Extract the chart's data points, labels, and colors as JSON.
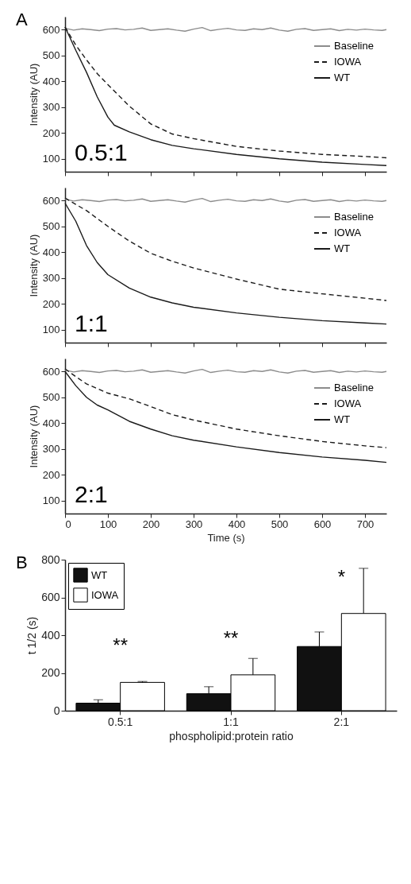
{
  "chart_data": [
    {
      "type": "line",
      "title": "A",
      "ylabel": "Intensity (AU)",
      "annotations": [
        "0.5:1"
      ],
      "xlim": [
        0,
        750
      ],
      "xticks": [
        0,
        100,
        200,
        300,
        400,
        500,
        600,
        700
      ],
      "ylim": [
        50,
        650
      ],
      "yticks": [
        100,
        200,
        300,
        400,
        500,
        600
      ],
      "tick_labels": "y",
      "legend": "top right",
      "series": [
        {
          "name": "Baseline",
          "color": "#8c8c8c",
          "line_style": "solid",
          "x": [
            0,
            20,
            40,
            60,
            80,
            100,
            120,
            140,
            160,
            180,
            200,
            220,
            240,
            260,
            280,
            300,
            320,
            340,
            360,
            380,
            400,
            420,
            440,
            460,
            480,
            500,
            520,
            540,
            560,
            580,
            600,
            620,
            640,
            660,
            680,
            700,
            720,
            740,
            750
          ],
          "values": [
            605,
            598,
            603,
            600,
            596,
            602,
            604,
            599,
            601,
            606,
            597,
            600,
            603,
            598,
            594,
            602,
            608,
            596,
            601,
            605,
            599,
            597,
            603,
            600,
            606,
            598,
            594,
            601,
            604,
            597,
            600,
            603,
            596,
            601,
            598,
            602,
            599,
            597,
            600
          ]
        },
        {
          "name": "IOWA",
          "color": "#1a1a1a",
          "line_style": "dashed",
          "x": [
            0,
            25,
            50,
            75,
            100,
            150,
            200,
            250,
            300,
            400,
            500,
            600,
            700,
            750
          ],
          "values": [
            610,
            540,
            483,
            430,
            387,
            304,
            235,
            196,
            178,
            148,
            130,
            117,
            109,
            104
          ]
        },
        {
          "name": "WT",
          "color": "#1a1a1a",
          "line_style": "solid",
          "x": [
            0,
            25,
            50,
            75,
            100,
            115,
            150,
            200,
            250,
            300,
            400,
            500,
            600,
            700,
            750
          ],
          "values": [
            610,
            520,
            435,
            340,
            261,
            230,
            204,
            174,
            152,
            139,
            117,
            100,
            87,
            78,
            74
          ]
        }
      ]
    },
    {
      "type": "line",
      "ylabel": "Intensity (AU)",
      "annotations": [
        "1:1"
      ],
      "xlim": [
        0,
        750
      ],
      "xticks": [
        0,
        100,
        200,
        300,
        400,
        500,
        600,
        700
      ],
      "ylim": [
        50,
        650
      ],
      "yticks": [
        100,
        200,
        300,
        400,
        500,
        600
      ],
      "tick_labels": "y",
      "legend": "top right",
      "series": [
        {
          "name": "Baseline",
          "color": "#8c8c8c",
          "line_style": "solid",
          "x": [
            0,
            20,
            40,
            60,
            80,
            100,
            120,
            140,
            160,
            180,
            200,
            220,
            240,
            260,
            280,
            300,
            320,
            340,
            360,
            380,
            400,
            420,
            440,
            460,
            480,
            500,
            520,
            540,
            560,
            580,
            600,
            620,
            640,
            660,
            680,
            700,
            720,
            740,
            750
          ],
          "values": [
            605,
            598,
            603,
            600,
            596,
            602,
            604,
            599,
            601,
            606,
            597,
            600,
            603,
            598,
            594,
            602,
            608,
            596,
            601,
            605,
            599,
            597,
            603,
            600,
            606,
            598,
            594,
            601,
            604,
            597,
            600,
            603,
            596,
            601,
            598,
            602,
            599,
            597,
            600
          ]
        },
        {
          "name": "IOWA",
          "color": "#1a1a1a",
          "line_style": "dashed",
          "x": [
            0,
            25,
            50,
            100,
            150,
            200,
            250,
            300,
            400,
            500,
            600,
            700,
            750
          ],
          "values": [
            610,
            585,
            561,
            500,
            443,
            396,
            365,
            339,
            296,
            257,
            239,
            222,
            213
          ]
        },
        {
          "name": "WT",
          "color": "#1a1a1a",
          "line_style": "solid",
          "x": [
            0,
            25,
            50,
            75,
            100,
            150,
            200,
            250,
            300,
            400,
            500,
            600,
            700,
            750
          ],
          "values": [
            590,
            520,
            426,
            360,
            313,
            261,
            226,
            204,
            187,
            165,
            148,
            135,
            126,
            122
          ]
        }
      ]
    },
    {
      "type": "line",
      "ylabel": "Intensity (AU)",
      "xlabel": "Time (s)",
      "annotations": [
        "2:1"
      ],
      "xlim": [
        0,
        750
      ],
      "xticks": [
        0,
        100,
        200,
        300,
        400,
        500,
        600,
        700
      ],
      "ylim": [
        50,
        650
      ],
      "yticks": [
        100,
        200,
        300,
        400,
        500,
        600
      ],
      "legend": "top right",
      "series": [
        {
          "name": "Baseline",
          "color": "#8c8c8c",
          "line_style": "solid",
          "x": [
            0,
            20,
            40,
            60,
            80,
            100,
            120,
            140,
            160,
            180,
            200,
            220,
            240,
            260,
            280,
            300,
            320,
            340,
            360,
            380,
            400,
            420,
            440,
            460,
            480,
            500,
            520,
            540,
            560,
            580,
            600,
            620,
            640,
            660,
            680,
            700,
            720,
            740,
            750
          ],
          "values": [
            605,
            598,
            603,
            600,
            596,
            602,
            604,
            599,
            601,
            606,
            597,
            600,
            603,
            598,
            594,
            602,
            608,
            596,
            601,
            605,
            599,
            597,
            603,
            600,
            606,
            598,
            594,
            601,
            604,
            597,
            600,
            603,
            596,
            601,
            598,
            602,
            599,
            597,
            600
          ]
        },
        {
          "name": "IOWA",
          "color": "#1a1a1a",
          "line_style": "dashed",
          "x": [
            0,
            25,
            50,
            100,
            150,
            200,
            250,
            300,
            400,
            500,
            600,
            700,
            750
          ],
          "values": [
            610,
            580,
            552,
            516,
            494,
            464,
            433,
            412,
            377,
            351,
            329,
            312,
            305
          ]
        },
        {
          "name": "WT",
          "color": "#1a1a1a",
          "line_style": "solid",
          "x": [
            0,
            25,
            50,
            75,
            100,
            150,
            200,
            250,
            300,
            400,
            500,
            600,
            700,
            750
          ],
          "values": [
            600,
            545,
            500,
            470,
            451,
            407,
            377,
            351,
            334,
            308,
            286,
            269,
            256,
            248
          ]
        }
      ]
    },
    {
      "type": "bar",
      "title": "B",
      "ylabel": "t 1/2 (s)",
      "xlabel": "phospholipid:protein ratio",
      "categories": [
        "0.5:1",
        "1:1",
        "2:1"
      ],
      "ylim": [
        0,
        800
      ],
      "yticks": [
        0,
        200,
        400,
        600,
        800
      ],
      "legend": "top left",
      "annotations": [
        "**",
        "**",
        "*"
      ],
      "series": [
        {
          "name": "WT",
          "color": "#111111",
          "values": [
            40,
            90,
            340
          ],
          "errors": [
            [
              40,
              58
            ],
            [
              90,
              127
            ],
            [
              340,
              417
            ]
          ]
        },
        {
          "name": "IOWA",
          "color": "#ffffff",
          "values": [
            150,
            190,
            515
          ],
          "errors": [
            [
              150,
              155
            ],
            [
              190,
              277
            ],
            [
              515,
              754
            ]
          ]
        }
      ]
    }
  ]
}
